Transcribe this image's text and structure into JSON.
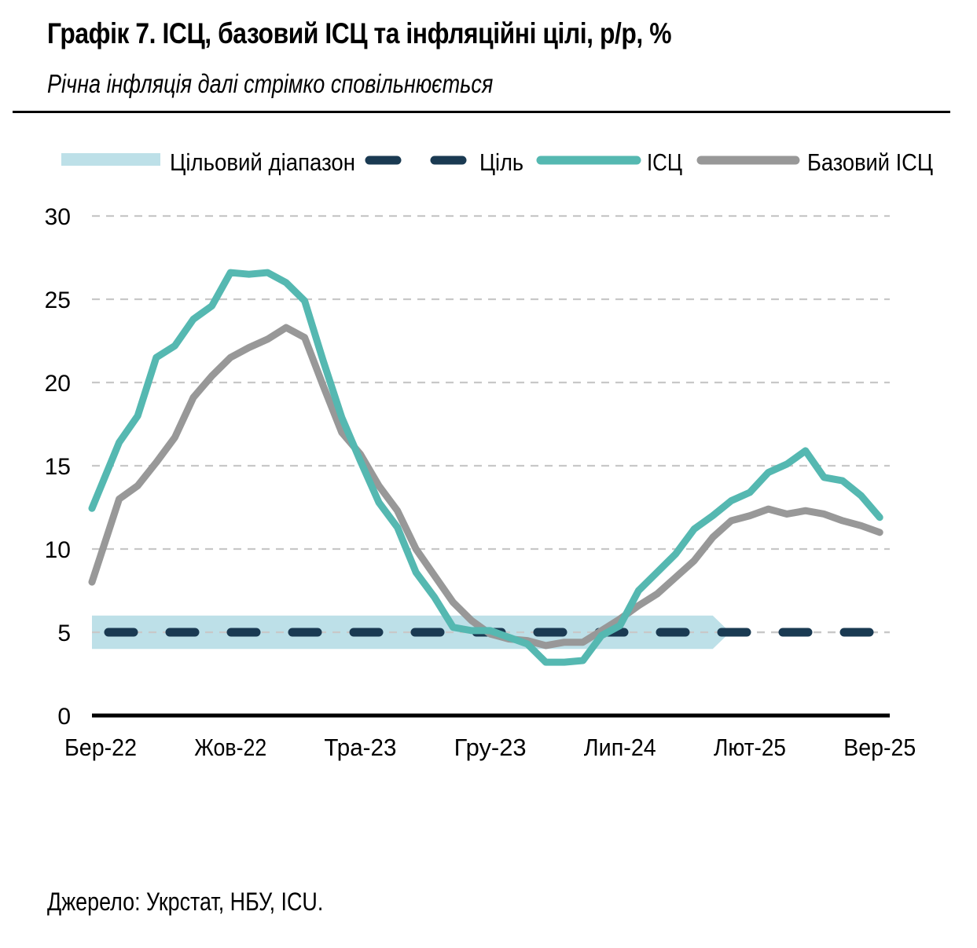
{
  "header": {
    "title": "Графік 7. ІСЦ, базовий ІСЦ та інфляційні цілі, р/р, %",
    "subtitle": "Річна інфляція далі стрімко сповільнюється"
  },
  "footer": {
    "source": "Джерело: Укрстат, НБУ, ICU."
  },
  "colors": {
    "band": "#bde0e8",
    "target": "#1a3a52",
    "cpi": "#55b8b1",
    "core": "#989898",
    "grid": "#c8c8c8",
    "axis": "#000000"
  },
  "chart_data": {
    "type": "line",
    "title": "Графік 7. ІСЦ, базовий ІСЦ та інфляційні цілі, р/р, %",
    "subtitle": "Річна інфляція далі стрімко сповільнюється",
    "xlabel": "",
    "ylabel": "",
    "ylim": [
      0,
      30
    ],
    "yticks": [
      0,
      5,
      10,
      15,
      20,
      25,
      30
    ],
    "grid": true,
    "legend_position": "top",
    "x_tick_labels": [
      "Бер-22",
      "Жов-22",
      "Тра-23",
      "Гру-23",
      "Лип-24",
      "Лют-25",
      "Вер-25"
    ],
    "x_tick_indices": [
      0,
      7,
      14,
      21,
      28,
      35,
      42
    ],
    "x": [
      "Бер-22",
      "Кві-22",
      "Тра-22",
      "Чер-22",
      "Лип-22",
      "Сер-22",
      "Вер-22",
      "Жов-22",
      "Лис-22",
      "Гру-22",
      "Січ-23",
      "Лют-23",
      "Бер-23",
      "Кві-23",
      "Тра-23",
      "Чер-23",
      "Лип-23",
      "Сер-23",
      "Вер-23",
      "Жов-23",
      "Лис-23",
      "Гру-23",
      "Січ-24",
      "Лют-24",
      "Бер-24",
      "Кві-24",
      "Тра-24",
      "Чер-24",
      "Лип-24",
      "Сер-24",
      "Вер-24",
      "Жов-24",
      "Лис-24",
      "Гру-24",
      "Січ-25",
      "Лют-25",
      "Бер-25",
      "Кві-25",
      "Тра-25",
      "Чер-25",
      "Лип-25",
      "Сер-25",
      "Вер-25"
    ],
    "series": [
      {
        "name": "ІСЦ",
        "style": "solid",
        "values": [
          13.7,
          16.4,
          18.0,
          21.5,
          22.2,
          23.8,
          24.6,
          26.6,
          26.5,
          26.6,
          26.0,
          24.9,
          21.3,
          17.9,
          15.3,
          12.8,
          11.3,
          8.6,
          7.1,
          5.3,
          5.1,
          5.1,
          4.7,
          4.3,
          3.2,
          3.2,
          3.3,
          4.8,
          5.4,
          7.5,
          8.6,
          9.7,
          11.2,
          12.0,
          12.9,
          13.4,
          14.6,
          15.1,
          15.9,
          14.3,
          14.1,
          13.2,
          11.9
        ]
      },
      {
        "name": "Базовий ІСЦ",
        "style": "solid",
        "values": [
          9.6,
          13.0,
          13.8,
          15.2,
          16.7,
          19.1,
          20.4,
          21.5,
          22.1,
          22.6,
          23.3,
          22.7,
          19.8,
          17.0,
          15.7,
          13.8,
          12.3,
          10.0,
          8.4,
          6.8,
          5.7,
          4.9,
          4.6,
          4.5,
          4.2,
          4.4,
          4.4,
          5.1,
          5.8,
          6.6,
          7.3,
          8.3,
          9.3,
          10.7,
          11.7,
          12.0,
          12.4,
          12.1,
          12.3,
          12.1,
          11.7,
          11.4,
          11.0
        ]
      },
      {
        "name": "Ціль",
        "style": "dashed",
        "value": 5
      },
      {
        "name": "Цільовий діапазон",
        "style": "band",
        "range": [
          4,
          6
        ],
        "end_index": 33
      }
    ],
    "legend": [
      "Цільовий діапазон",
      "Ціль",
      "ІСЦ",
      "Базовий ІСЦ"
    ]
  }
}
